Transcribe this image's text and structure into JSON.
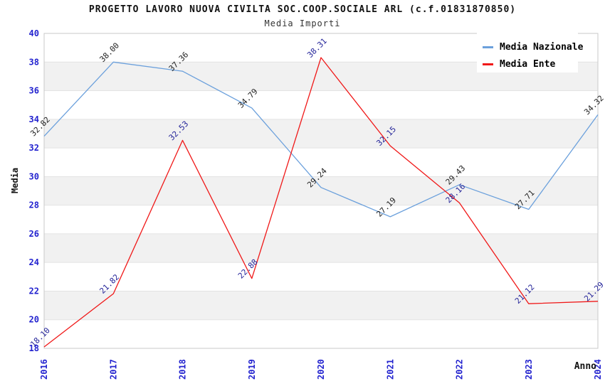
{
  "header": {
    "title": "PROGETTO LAVORO NUOVA CIVILTA SOC.COOP.SOCIALE ARL (c.f.01831870850)",
    "subtitle": "Media Importi"
  },
  "chart_data": {
    "type": "line",
    "title": "PROGETTO LAVORO NUOVA CIVILTA SOC.COOP.SOCIALE ARL (c.f.01831870850)",
    "subtitle": "Media Importi",
    "xlabel": "Anno",
    "ylabel": "Media",
    "x": [
      2016,
      2017,
      2018,
      2019,
      2020,
      2021,
      2022,
      2023,
      2024
    ],
    "x_labels": [
      "2016",
      "2017",
      "2018",
      "2019",
      "2020",
      "2021",
      "2022",
      "2023",
      "2024"
    ],
    "ylim": [
      18,
      40
    ],
    "y_ticks": [
      "18",
      "20",
      "22",
      "24",
      "26",
      "28",
      "30",
      "32",
      "34",
      "36",
      "38",
      "40"
    ],
    "grid": "horizontal-bands-alternating",
    "legend_position": "top-right",
    "series": [
      {
        "name": "Media Nazionale",
        "color": "#6ba0dc",
        "label_color": "#1f1f1f",
        "values": [
          32.82,
          38.0,
          37.36,
          34.79,
          29.24,
          27.19,
          29.43,
          27.71,
          34.32
        ],
        "value_labels": [
          "32.82",
          "38.00",
          "37.36",
          "34.79",
          "29.24",
          "27.19",
          "29.43",
          "27.71",
          "34.32"
        ]
      },
      {
        "name": "Media Ente",
        "color": "#f01818",
        "label_color": "#232399",
        "values": [
          18.1,
          21.82,
          32.53,
          22.88,
          38.31,
          32.15,
          28.16,
          21.12,
          21.29
        ],
        "value_labels": [
          "18.10",
          "21.82",
          "32.53",
          "22.88",
          "38.31",
          "32.15",
          "28.16",
          "21.12",
          "21.29"
        ]
      }
    ],
    "colors": {
      "tick_label": "#2323cf",
      "band_fill": "#f1f1f1",
      "grid_line": "#e3e3e3",
      "plot_border": "#c9c9c9",
      "background": "#ffffff"
    }
  }
}
